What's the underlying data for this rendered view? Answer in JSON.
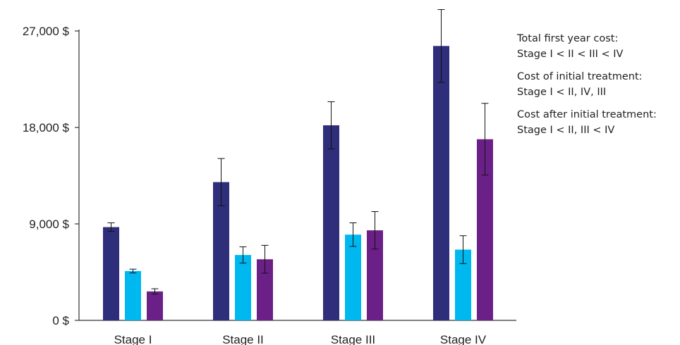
{
  "chart_data": {
    "type": "bar",
    "title": "",
    "xlabel": "",
    "ylabel": "",
    "categories": [
      "Stage I",
      "Stage II",
      "Stage III",
      "Stage IV"
    ],
    "y_ticks": [
      {
        "value": 0,
        "label": "0 $"
      },
      {
        "value": 9000,
        "label": "9,000 $"
      },
      {
        "value": 18000,
        "label": "18,000 $"
      },
      {
        "value": 27000,
        "label": "27,000 $"
      }
    ],
    "ylim": [
      0,
      27000
    ],
    "grid": false,
    "legend": "none",
    "series": [
      {
        "color": "#2e2e7a",
        "values": [
          8700,
          12900,
          18200,
          25600
        ],
        "error": [
          400,
          2200,
          2200,
          3400
        ]
      },
      {
        "color": "#00b8f0",
        "values": [
          4600,
          6100,
          8000,
          6600
        ],
        "error": [
          180,
          760,
          1100,
          1300
        ]
      },
      {
        "color": "#6b2088",
        "values": [
          2700,
          5700,
          8400,
          16900
        ],
        "error": [
          250,
          1300,
          1750,
          3350
        ]
      }
    ],
    "annotations": [
      {
        "heading": "Total first year cost:",
        "detail": "Stage I < II < III < IV"
      },
      {
        "heading": "Cost of initial treatment:",
        "detail": "Stage I < II, IV, III"
      },
      {
        "heading": "Cost after initial treatment:",
        "detail": "Stage I < II, III < IV"
      }
    ]
  }
}
